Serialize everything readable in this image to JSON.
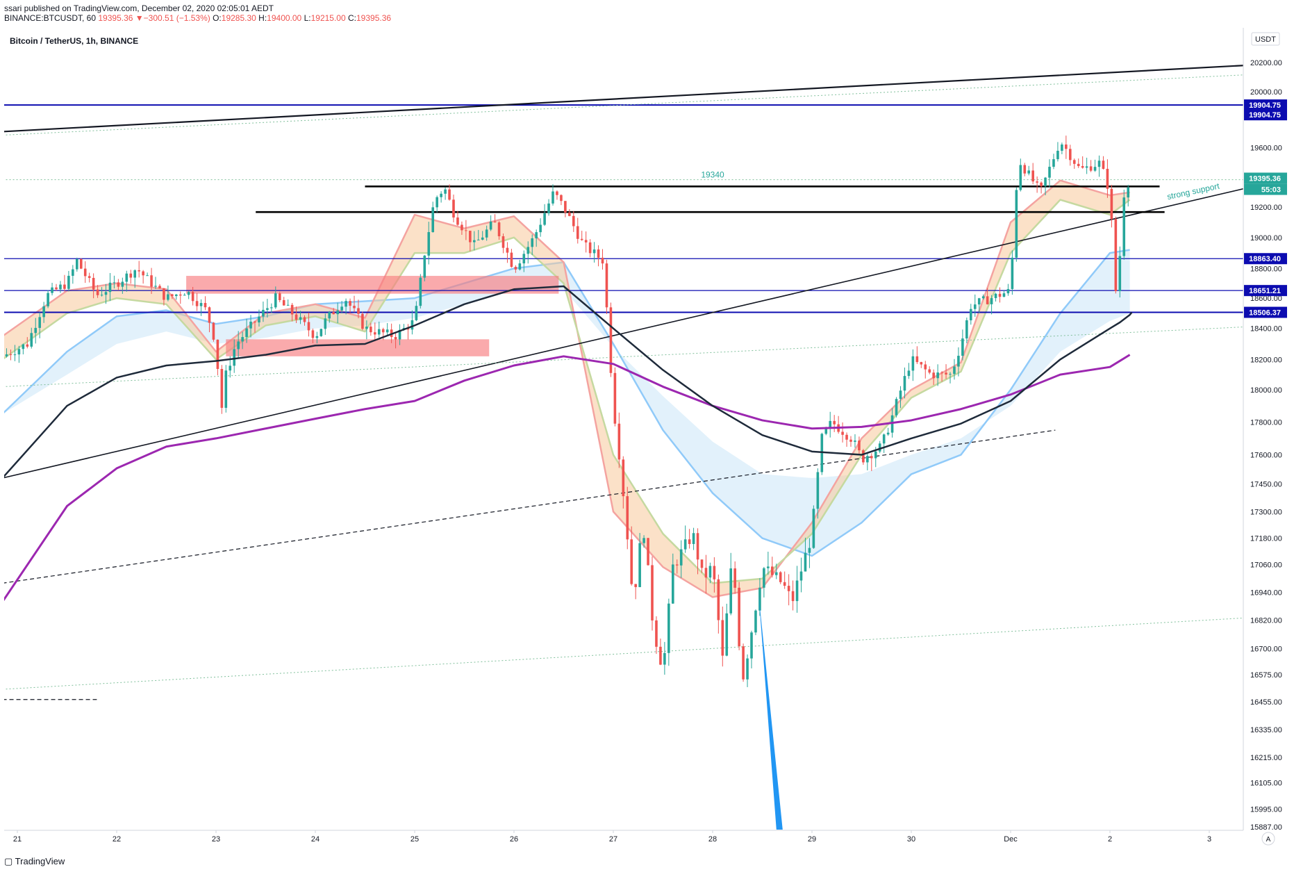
{
  "header": {
    "published_line": "ssari published on TradingView.com, December 02, 2020 02:05:01 AEDT",
    "symbol_line": "BINANCE:BTCUSDT, 60",
    "last": "19395.36",
    "change": "−300.51 (−1.53%)",
    "o_label": "O:",
    "o_val": "19285.30",
    "h_label": "H:",
    "h_val": "19400.00",
    "l_label": "L:",
    "l_val": "19215.00",
    "c_label": "C:",
    "c_val": "19395.36"
  },
  "chart_title": "Bitcoin / TetherUS, 1h, BINANCE",
  "footer": {
    "logo_text": "TradingView"
  },
  "colors": {
    "up": "#26a69a",
    "down": "#ef5350",
    "blue_line": "#0c0cb0",
    "ema_dark": "#1e2a3a",
    "ema_purple": "#9c27b0",
    "band_orange": "#f7c99a",
    "band_blue": "#bfe0f7",
    "zone_red": "#f77c80",
    "arrow_blue": "#2196f3"
  },
  "chart_data": {
    "type": "candlestick",
    "currency_label": "USDT",
    "y_ticks": [
      {
        "label": "20200.00",
        "v": 20200
      },
      {
        "label": "20000.00",
        "v": 20000
      },
      {
        "label": "19600.00",
        "v": 19600
      },
      {
        "label": "19200.00",
        "v": 19200
      },
      {
        "label": "19000.00",
        "v": 19000
      },
      {
        "label": "18800.00",
        "v": 18800
      },
      {
        "label": "18600.00",
        "v": 18600
      },
      {
        "label": "18400.00",
        "v": 18400
      },
      {
        "label": "18200.00",
        "v": 18200
      },
      {
        "label": "18000.00",
        "v": 18000
      },
      {
        "label": "17800.00",
        "v": 17800
      },
      {
        "label": "17600.00",
        "v": 17600
      },
      {
        "label": "17450.00",
        "v": 17450
      },
      {
        "label": "17300.00",
        "v": 17300
      },
      {
        "label": "17180.00",
        "v": 17180
      },
      {
        "label": "17060.00",
        "v": 17060
      },
      {
        "label": "16940.00",
        "v": 16940
      },
      {
        "label": "16820.00",
        "v": 16820
      },
      {
        "label": "16700.00",
        "v": 16700
      },
      {
        "label": "16575.00",
        "v": 16575
      },
      {
        "label": "16455.00",
        "v": 16455
      },
      {
        "label": "16335.00",
        "v": 16335
      },
      {
        "label": "16215.00",
        "v": 16215
      },
      {
        "label": "16105.00",
        "v": 16105
      },
      {
        "label": "15995.00",
        "v": 15995
      },
      {
        "label": "15887.00",
        "v": 15887
      }
    ],
    "x_ticks": [
      {
        "label": "21",
        "d": 0
      },
      {
        "label": "22",
        "d": 1
      },
      {
        "label": "23",
        "d": 2
      },
      {
        "label": "24",
        "d": 3
      },
      {
        "label": "25",
        "d": 4
      },
      {
        "label": "26",
        "d": 5
      },
      {
        "label": "27",
        "d": 6
      },
      {
        "label": "28",
        "d": 7
      },
      {
        "label": "29",
        "d": 8
      },
      {
        "label": "30",
        "d": 9
      },
      {
        "label": "Dec",
        "d": 10
      },
      {
        "label": "2",
        "d": 11
      },
      {
        "label": "3",
        "d": 12
      }
    ],
    "price_tags": [
      {
        "label": "19904.75",
        "v": 19904.75,
        "style": "blue"
      },
      {
        "label": "19904.75",
        "v": 19835,
        "style": "blue"
      },
      {
        "label": "19395.36",
        "v": 19395.36,
        "style": "green"
      },
      {
        "label": "55:03",
        "v": 19320,
        "style": "green"
      },
      {
        "label": "18863.40",
        "v": 18863.4,
        "style": "blue"
      },
      {
        "label": "18651.21",
        "v": 18651.21,
        "style": "blue"
      },
      {
        "label": "18506.37",
        "v": 18506.37,
        "style": "blue"
      }
    ],
    "annotations": [
      {
        "text": "19340",
        "d": 7.0,
        "v": 19380
      },
      {
        "text": "strong support",
        "d": 11.85,
        "v": 19270
      }
    ],
    "horizontal_levels": [
      19904.75,
      18863.4,
      18651.21,
      18506.37
    ],
    "resistance_lines": [
      {
        "d1": 3.5,
        "d2": 11.5,
        "v": 19340
      },
      {
        "d1": 2.4,
        "d2": 11.55,
        "v": 19168
      }
    ],
    "trendlines": [
      {
        "d1": -0.15,
        "v1": 19715,
        "d2": 12.35,
        "v2": 20180,
        "style": "solid-thick"
      },
      {
        "d1": -0.15,
        "v1": 17480,
        "d2": 12.35,
        "v2": 19325,
        "style": "solid"
      },
      {
        "d1": -0.15,
        "v1": 16980,
        "d2": 10.45,
        "v2": 17750,
        "style": "dashed"
      },
      {
        "d1": -0.15,
        "v1": 16465,
        "d2": 0.8,
        "v2": 16465,
        "style": "dashed"
      },
      {
        "d1": -0.15,
        "v1": 19690,
        "d2": 12.35,
        "v2": 20115,
        "style": "dotted"
      },
      {
        "d1": -0.15,
        "v1": 18020,
        "d2": 12.35,
        "v2": 18410,
        "style": "dotted"
      },
      {
        "d1": -0.15,
        "v1": 16510,
        "d2": 12.35,
        "v2": 16830,
        "style": "dotted"
      },
      {
        "d1": -0.15,
        "v1": 19385,
        "d2": 12.35,
        "v2": 19385,
        "style": "dotted"
      }
    ],
    "zones": [
      {
        "d1": 1.7,
        "d2": 5.45,
        "v_top": 18750,
        "v_bot": 18630
      },
      {
        "d1": 2.1,
        "d2": 4.75,
        "v_top": 18330,
        "v_bot": 18220
      }
    ],
    "arrow": {
      "d1": 7.47,
      "v1": 16930,
      "d2": 7.67,
      "v2": 15870
    },
    "ema_dark": [
      [
        -0.15,
        17480
      ],
      [
        0.5,
        17900
      ],
      [
        1,
        18080
      ],
      [
        1.5,
        18160
      ],
      [
        2,
        18190
      ],
      [
        2.5,
        18230
      ],
      [
        3,
        18290
      ],
      [
        3.5,
        18300
      ],
      [
        4,
        18420
      ],
      [
        4.5,
        18560
      ],
      [
        5,
        18660
      ],
      [
        5.5,
        18680
      ],
      [
        6,
        18400
      ],
      [
        6.5,
        18130
      ],
      [
        7,
        17900
      ],
      [
        7.5,
        17720
      ],
      [
        8,
        17620
      ],
      [
        8.5,
        17600
      ],
      [
        9,
        17700
      ],
      [
        9.5,
        17790
      ],
      [
        10,
        17930
      ],
      [
        10.5,
        18200
      ],
      [
        11,
        18400
      ],
      [
        11.1,
        18440
      ],
      [
        11.2,
        18490
      ],
      [
        11.22,
        18506
      ]
    ],
    "ema_purple": [
      [
        -0.15,
        16900
      ],
      [
        0.5,
        17330
      ],
      [
        1,
        17530
      ],
      [
        1.5,
        17650
      ],
      [
        2,
        17700
      ],
      [
        2.5,
        17760
      ],
      [
        3,
        17820
      ],
      [
        3.5,
        17880
      ],
      [
        4,
        17930
      ],
      [
        4.5,
        18060
      ],
      [
        5,
        18160
      ],
      [
        5.5,
        18220
      ],
      [
        6,
        18170
      ],
      [
        6.5,
        18020
      ],
      [
        7,
        17900
      ],
      [
        7.5,
        17810
      ],
      [
        8,
        17760
      ],
      [
        8.5,
        17770
      ],
      [
        9,
        17810
      ],
      [
        9.5,
        17880
      ],
      [
        10,
        17970
      ],
      [
        10.5,
        18100
      ],
      [
        11,
        18150
      ],
      [
        11.1,
        18190
      ],
      [
        11.2,
        18230
      ]
    ],
    "band_blue_upper": [
      [
        -0.15,
        17850
      ],
      [
        0.5,
        18250
      ],
      [
        1,
        18480
      ],
      [
        1.5,
        18520
      ],
      [
        2,
        18430
      ],
      [
        2.5,
        18480
      ],
      [
        3,
        18560
      ],
      [
        3.5,
        18580
      ],
      [
        4,
        18600
      ],
      [
        4.5,
        18700
      ],
      [
        5,
        18800
      ],
      [
        5.5,
        18840
      ],
      [
        6,
        18300
      ],
      [
        6.5,
        17750
      ],
      [
        7,
        17400
      ],
      [
        7.5,
        17180
      ],
      [
        8,
        17100
      ],
      [
        8.5,
        17250
      ],
      [
        9,
        17500
      ],
      [
        9.5,
        17600
      ],
      [
        10,
        18000
      ],
      [
        10.5,
        18500
      ],
      [
        11,
        18900
      ],
      [
        11.2,
        18920
      ]
    ],
    "band_blue_lower": [
      [
        -0.15,
        17850
      ],
      [
        0.5,
        18100
      ],
      [
        1,
        18300
      ],
      [
        1.5,
        18380
      ],
      [
        2,
        18300
      ],
      [
        2.5,
        18340
      ],
      [
        3,
        18400
      ],
      [
        3.5,
        18420
      ],
      [
        4,
        18470
      ],
      [
        4.5,
        18560
      ],
      [
        5,
        18650
      ],
      [
        5.5,
        18660
      ],
      [
        6,
        18280
      ],
      [
        6.5,
        17960
      ],
      [
        7,
        17680
      ],
      [
        7.5,
        17500
      ],
      [
        8,
        17480
      ],
      [
        8.5,
        17500
      ],
      [
        9,
        17600
      ],
      [
        9.5,
        17700
      ],
      [
        10,
        17900
      ],
      [
        10.5,
        18250
      ],
      [
        11,
        18450
      ],
      [
        11.2,
        18500
      ]
    ],
    "band_orange_upper": [
      [
        -0.15,
        18350
      ],
      [
        0.5,
        18650
      ],
      [
        1,
        18700
      ],
      [
        1.5,
        18660
      ],
      [
        2,
        18250
      ],
      [
        2.5,
        18500
      ],
      [
        3,
        18560
      ],
      [
        3.5,
        18470
      ],
      [
        4,
        19150
      ],
      [
        4.5,
        19060
      ],
      [
        5,
        19140
      ],
      [
        5.5,
        18840
      ],
      [
        6,
        17300
      ],
      [
        6.5,
        17050
      ],
      [
        7,
        16920
      ],
      [
        7.5,
        16960
      ],
      [
        8,
        17250
      ],
      [
        8.5,
        17700
      ],
      [
        9,
        18000
      ],
      [
        9.5,
        18180
      ],
      [
        10,
        19100
      ],
      [
        10.5,
        19380
      ],
      [
        11,
        19280
      ],
      [
        11.2,
        19300
      ]
    ],
    "band_orange_lower": [
      [
        -0.15,
        18200
      ],
      [
        0.5,
        18500
      ],
      [
        1,
        18600
      ],
      [
        1.5,
        18560
      ],
      [
        2,
        18200
      ],
      [
        2.5,
        18420
      ],
      [
        3,
        18480
      ],
      [
        3.5,
        18380
      ],
      [
        4,
        18900
      ],
      [
        4.5,
        18900
      ],
      [
        5,
        19000
      ],
      [
        5.5,
        18700
      ],
      [
        6,
        17600
      ],
      [
        6.5,
        17200
      ],
      [
        7,
        16980
      ],
      [
        7.5,
        17000
      ],
      [
        8,
        17200
      ],
      [
        8.5,
        17600
      ],
      [
        9,
        17950
      ],
      [
        9.5,
        18120
      ],
      [
        10,
        18900
      ],
      [
        10.5,
        19250
      ],
      [
        11,
        19150
      ],
      [
        11.2,
        19250
      ]
    ],
    "price_path": [
      [
        -0.15,
        18220
      ],
      [
        0.1,
        18300
      ],
      [
        0.3,
        18620
      ],
      [
        0.5,
        18700
      ],
      [
        0.6,
        18850
      ],
      [
        0.8,
        18620
      ],
      [
        1.0,
        18700
      ],
      [
        1.2,
        18800
      ],
      [
        1.5,
        18600
      ],
      [
        1.7,
        18650
      ],
      [
        1.9,
        18520
      ],
      [
        2.0,
        18300
      ],
      [
        2.05,
        17850
      ],
      [
        2.1,
        18100
      ],
      [
        2.2,
        18300
      ],
      [
        2.4,
        18450
      ],
      [
        2.6,
        18600
      ],
      [
        2.8,
        18480
      ],
      [
        3.0,
        18350
      ],
      [
        3.1,
        18450
      ],
      [
        3.3,
        18600
      ],
      [
        3.5,
        18400
      ],
      [
        3.8,
        18350
      ],
      [
        4.0,
        18450
      ],
      [
        4.1,
        18900
      ],
      [
        4.2,
        19250
      ],
      [
        4.3,
        19330
      ],
      [
        4.4,
        19150
      ],
      [
        4.6,
        18950
      ],
      [
        4.8,
        19100
      ],
      [
        5.0,
        18800
      ],
      [
        5.2,
        19000
      ],
      [
        5.4,
        19300
      ],
      [
        5.5,
        19200
      ],
      [
        5.7,
        18950
      ],
      [
        5.9,
        18850
      ],
      [
        6.0,
        17900
      ],
      [
        6.1,
        17400
      ],
      [
        6.2,
        16900
      ],
      [
        6.3,
        17250
      ],
      [
        6.4,
        16800
      ],
      [
        6.5,
        16600
      ],
      [
        6.6,
        17050
      ],
      [
        6.8,
        17200
      ],
      [
        6.9,
        17000
      ],
      [
        7.0,
        17050
      ],
      [
        7.1,
        16650
      ],
      [
        7.2,
        17100
      ],
      [
        7.3,
        16550
      ],
      [
        7.4,
        16800
      ],
      [
        7.5,
        17050
      ],
      [
        7.7,
        16980
      ],
      [
        7.8,
        16900
      ],
      [
        8.0,
        17200
      ],
      [
        8.1,
        17700
      ],
      [
        8.2,
        17800
      ],
      [
        8.4,
        17700
      ],
      [
        8.5,
        17580
      ],
      [
        8.7,
        17650
      ],
      [
        8.8,
        17820
      ],
      [
        9.0,
        18200
      ],
      [
        9.2,
        18100
      ],
      [
        9.4,
        18100
      ],
      [
        9.5,
        18300
      ],
      [
        9.6,
        18550
      ],
      [
        9.8,
        18600
      ],
      [
        10.0,
        18650
      ],
      [
        10.05,
        19300
      ],
      [
        10.1,
        19500
      ],
      [
        10.3,
        19300
      ],
      [
        10.5,
        19650
      ],
      [
        10.7,
        19450
      ],
      [
        10.9,
        19500
      ],
      [
        11.0,
        19300
      ],
      [
        11.05,
        18700
      ],
      [
        11.08,
        18520
      ],
      [
        11.12,
        19250
      ],
      [
        11.2,
        19395
      ]
    ]
  }
}
